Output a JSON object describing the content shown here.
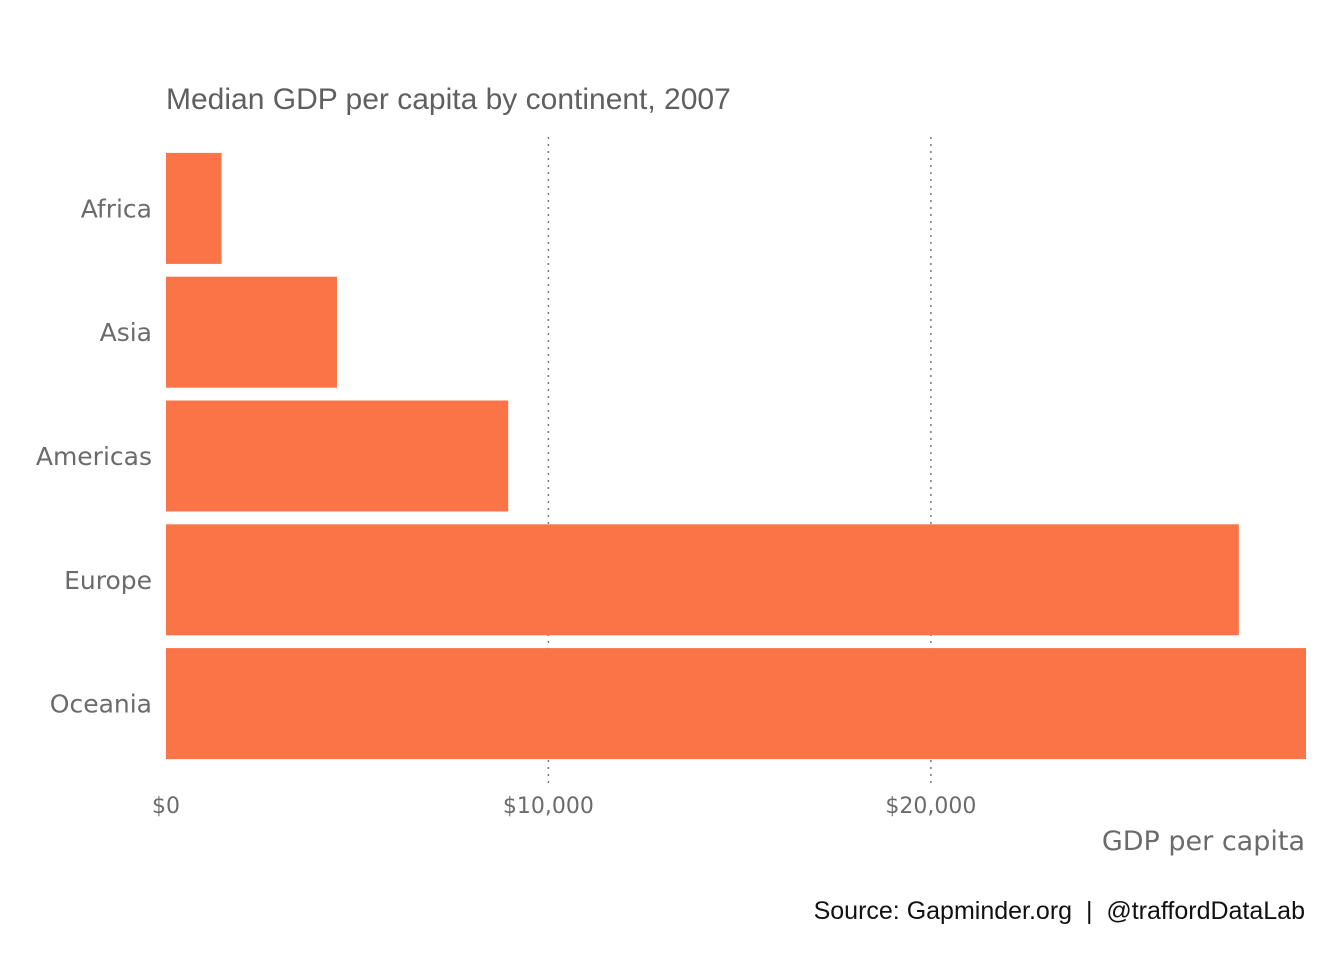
{
  "chart_data": {
    "type": "bar",
    "orientation": "horizontal",
    "title": "Median GDP per capita by continent, 2007",
    "xlabel": "GDP per capita",
    "ylabel": "",
    "categories": [
      "Africa",
      "Asia",
      "Americas",
      "Europe",
      "Oceania"
    ],
    "values": [
      1452,
      4471,
      8948,
      28054,
      29810
    ],
    "xlim": [
      0,
      29810
    ],
    "xticks": [
      0,
      10000,
      20000
    ],
    "xtick_labels": [
      "$0",
      "$10,000",
      "$20,000"
    ],
    "grid": "vertical dotted",
    "legend": "none",
    "bar_color": "#fa7448",
    "caption": "Source: Gapminder.org  |  @traffordDataLab"
  }
}
